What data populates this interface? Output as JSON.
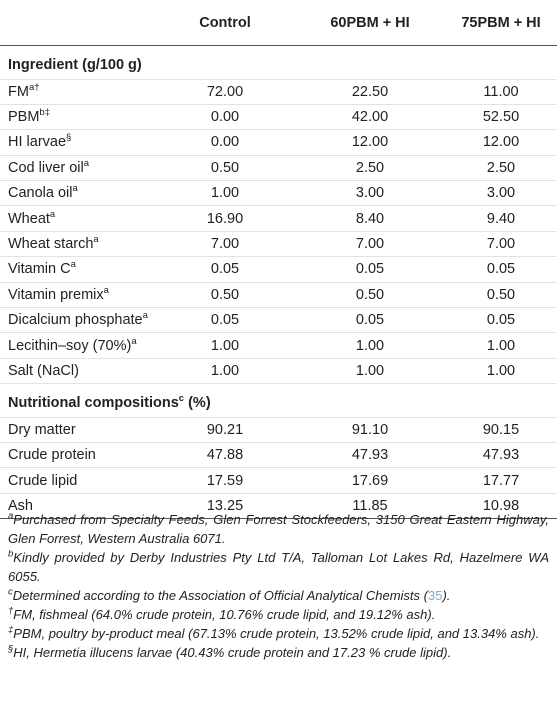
{
  "table": {
    "columns": [
      "",
      "Control",
      "60PBM + HI",
      "75PBM + HI"
    ],
    "sections": [
      {
        "title": "Ingredient (g/100 g)",
        "title_sup": "",
        "rows": [
          {
            "label": "FM",
            "sup": "a†",
            "values": [
              "72.00",
              "22.50",
              "11.00"
            ]
          },
          {
            "label": "PBM",
            "sup": "b‡",
            "values": [
              "0.00",
              "42.00",
              "52.50"
            ]
          },
          {
            "label": "HI larvae",
            "sup": "§",
            "values": [
              "0.00",
              "12.00",
              "12.00"
            ]
          },
          {
            "label": "Cod liver oil",
            "sup": "a",
            "values": [
              "0.50",
              "2.50",
              "2.50"
            ]
          },
          {
            "label": "Canola oil",
            "sup": "a",
            "values": [
              "1.00",
              "3.00",
              "3.00"
            ]
          },
          {
            "label": "Wheat",
            "sup": "a",
            "values": [
              "16.90",
              "8.40",
              "9.40"
            ]
          },
          {
            "label": "Wheat starch",
            "sup": "a",
            "values": [
              "7.00",
              "7.00",
              "7.00"
            ]
          },
          {
            "label": "Vitamin C",
            "sup": "a",
            "values": [
              "0.05",
              "0.05",
              "0.05"
            ]
          },
          {
            "label": "Vitamin premix",
            "sup": "a",
            "values": [
              "0.50",
              "0.50",
              "0.50"
            ]
          },
          {
            "label": "Dicalcium phosphate",
            "sup": "a",
            "values": [
              "0.05",
              "0.05",
              "0.05"
            ]
          },
          {
            "label": "Lecithin–soy (70%)",
            "sup": "a",
            "values": [
              "1.00",
              "1.00",
              "1.00"
            ]
          },
          {
            "label": "Salt (NaCl)",
            "sup": "",
            "values": [
              "1.00",
              "1.00",
              "1.00"
            ]
          }
        ]
      },
      {
        "title": "Nutritional compositions",
        "title_sup": "c",
        "title_tail": " (%)",
        "rows": [
          {
            "label": "Dry matter",
            "sup": "",
            "values": [
              "90.21",
              "91.10",
              "90.15"
            ]
          },
          {
            "label": "Crude protein",
            "sup": "",
            "values": [
              "47.88",
              "47.93",
              "47.93"
            ]
          },
          {
            "label": "Crude lipid",
            "sup": "",
            "values": [
              "17.59",
              "17.69",
              "17.77"
            ]
          },
          {
            "label": "Ash",
            "sup": "",
            "values": [
              "13.25",
              "11.85",
              "10.98"
            ]
          }
        ]
      }
    ]
  },
  "footnotes": [
    {
      "mark": "a",
      "text": "Purchased from Specialty Feeds, Glen Forrest Stockfeeders, 3150 Great Eastern Highway, Glen Forrest, Western Australia 6071."
    },
    {
      "mark": "b",
      "text": "Kindly provided by Derby Industries Pty Ltd T/A, Talloman Lot Lakes Rd, Hazelmere WA 6055."
    },
    {
      "mark": "c",
      "text": "Determined according to the Association of Official Analytical Chemists (",
      "ref": "35",
      "tail": ")."
    },
    {
      "mark": "†",
      "text": "FM, fishmeal (64.0% crude protein, 10.76% crude lipid, and 19.12% ash)."
    },
    {
      "mark": "‡",
      "text": "PBM, poultry by-product meal (67.13% crude protein, 13.52% crude lipid, and 13.34% ash)."
    },
    {
      "mark": "§",
      "text": "HI, Hermetia illucens larvae (40.43% crude protein and 17.23 % crude lipid)."
    }
  ]
}
